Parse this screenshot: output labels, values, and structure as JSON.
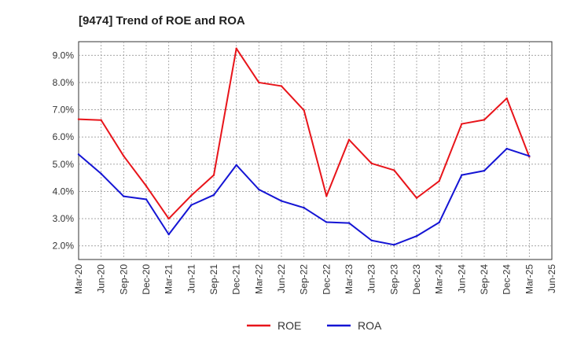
{
  "chart_data": {
    "type": "line",
    "title": "[9474]  Trend of ROE and ROA",
    "x": [
      "Mar-20",
      "Jun-20",
      "Sep-20",
      "Dec-20",
      "Mar-21",
      "Jun-21",
      "Sep-21",
      "Dec-21",
      "Mar-22",
      "Jun-22",
      "Sep-22",
      "Dec-22",
      "Mar-23",
      "Jun-23",
      "Sep-23",
      "Dec-23",
      "Mar-24",
      "Jun-24",
      "Sep-24",
      "Dec-24",
      "Mar-25"
    ],
    "x_ticks": [
      "Mar-20",
      "Jun-20",
      "Sep-20",
      "Dec-20",
      "Mar-21",
      "Jun-21",
      "Sep-21",
      "Dec-21",
      "Mar-22",
      "Jun-22",
      "Sep-22",
      "Dec-22",
      "Mar-23",
      "Jun-23",
      "Sep-23",
      "Dec-23",
      "Mar-24",
      "Jun-24",
      "Sep-24",
      "Dec-24",
      "Mar-25",
      "Jun-25"
    ],
    "y_ticks": [
      "2.0%",
      "3.0%",
      "4.0%",
      "5.0%",
      "6.0%",
      "7.0%",
      "8.0%",
      "9.0%"
    ],
    "ylim": [
      1.5,
      9.5
    ],
    "grid": true,
    "legend_position": "bottom-center",
    "series": [
      {
        "name": "ROE",
        "color": "#e8141a",
        "values": [
          6.65,
          6.62,
          5.3,
          4.2,
          3.0,
          3.85,
          4.6,
          9.25,
          8.0,
          7.87,
          6.98,
          3.83,
          5.9,
          5.03,
          4.78,
          3.76,
          4.38,
          6.48,
          6.63,
          7.42,
          5.27
        ]
      },
      {
        "name": "ROA",
        "color": "#1414d4",
        "values": [
          5.36,
          4.65,
          3.82,
          3.71,
          2.42,
          3.5,
          3.87,
          4.97,
          4.07,
          3.65,
          3.4,
          2.87,
          2.84,
          2.2,
          2.04,
          2.36,
          2.86,
          4.6,
          4.76,
          5.57,
          5.3
        ]
      }
    ]
  }
}
